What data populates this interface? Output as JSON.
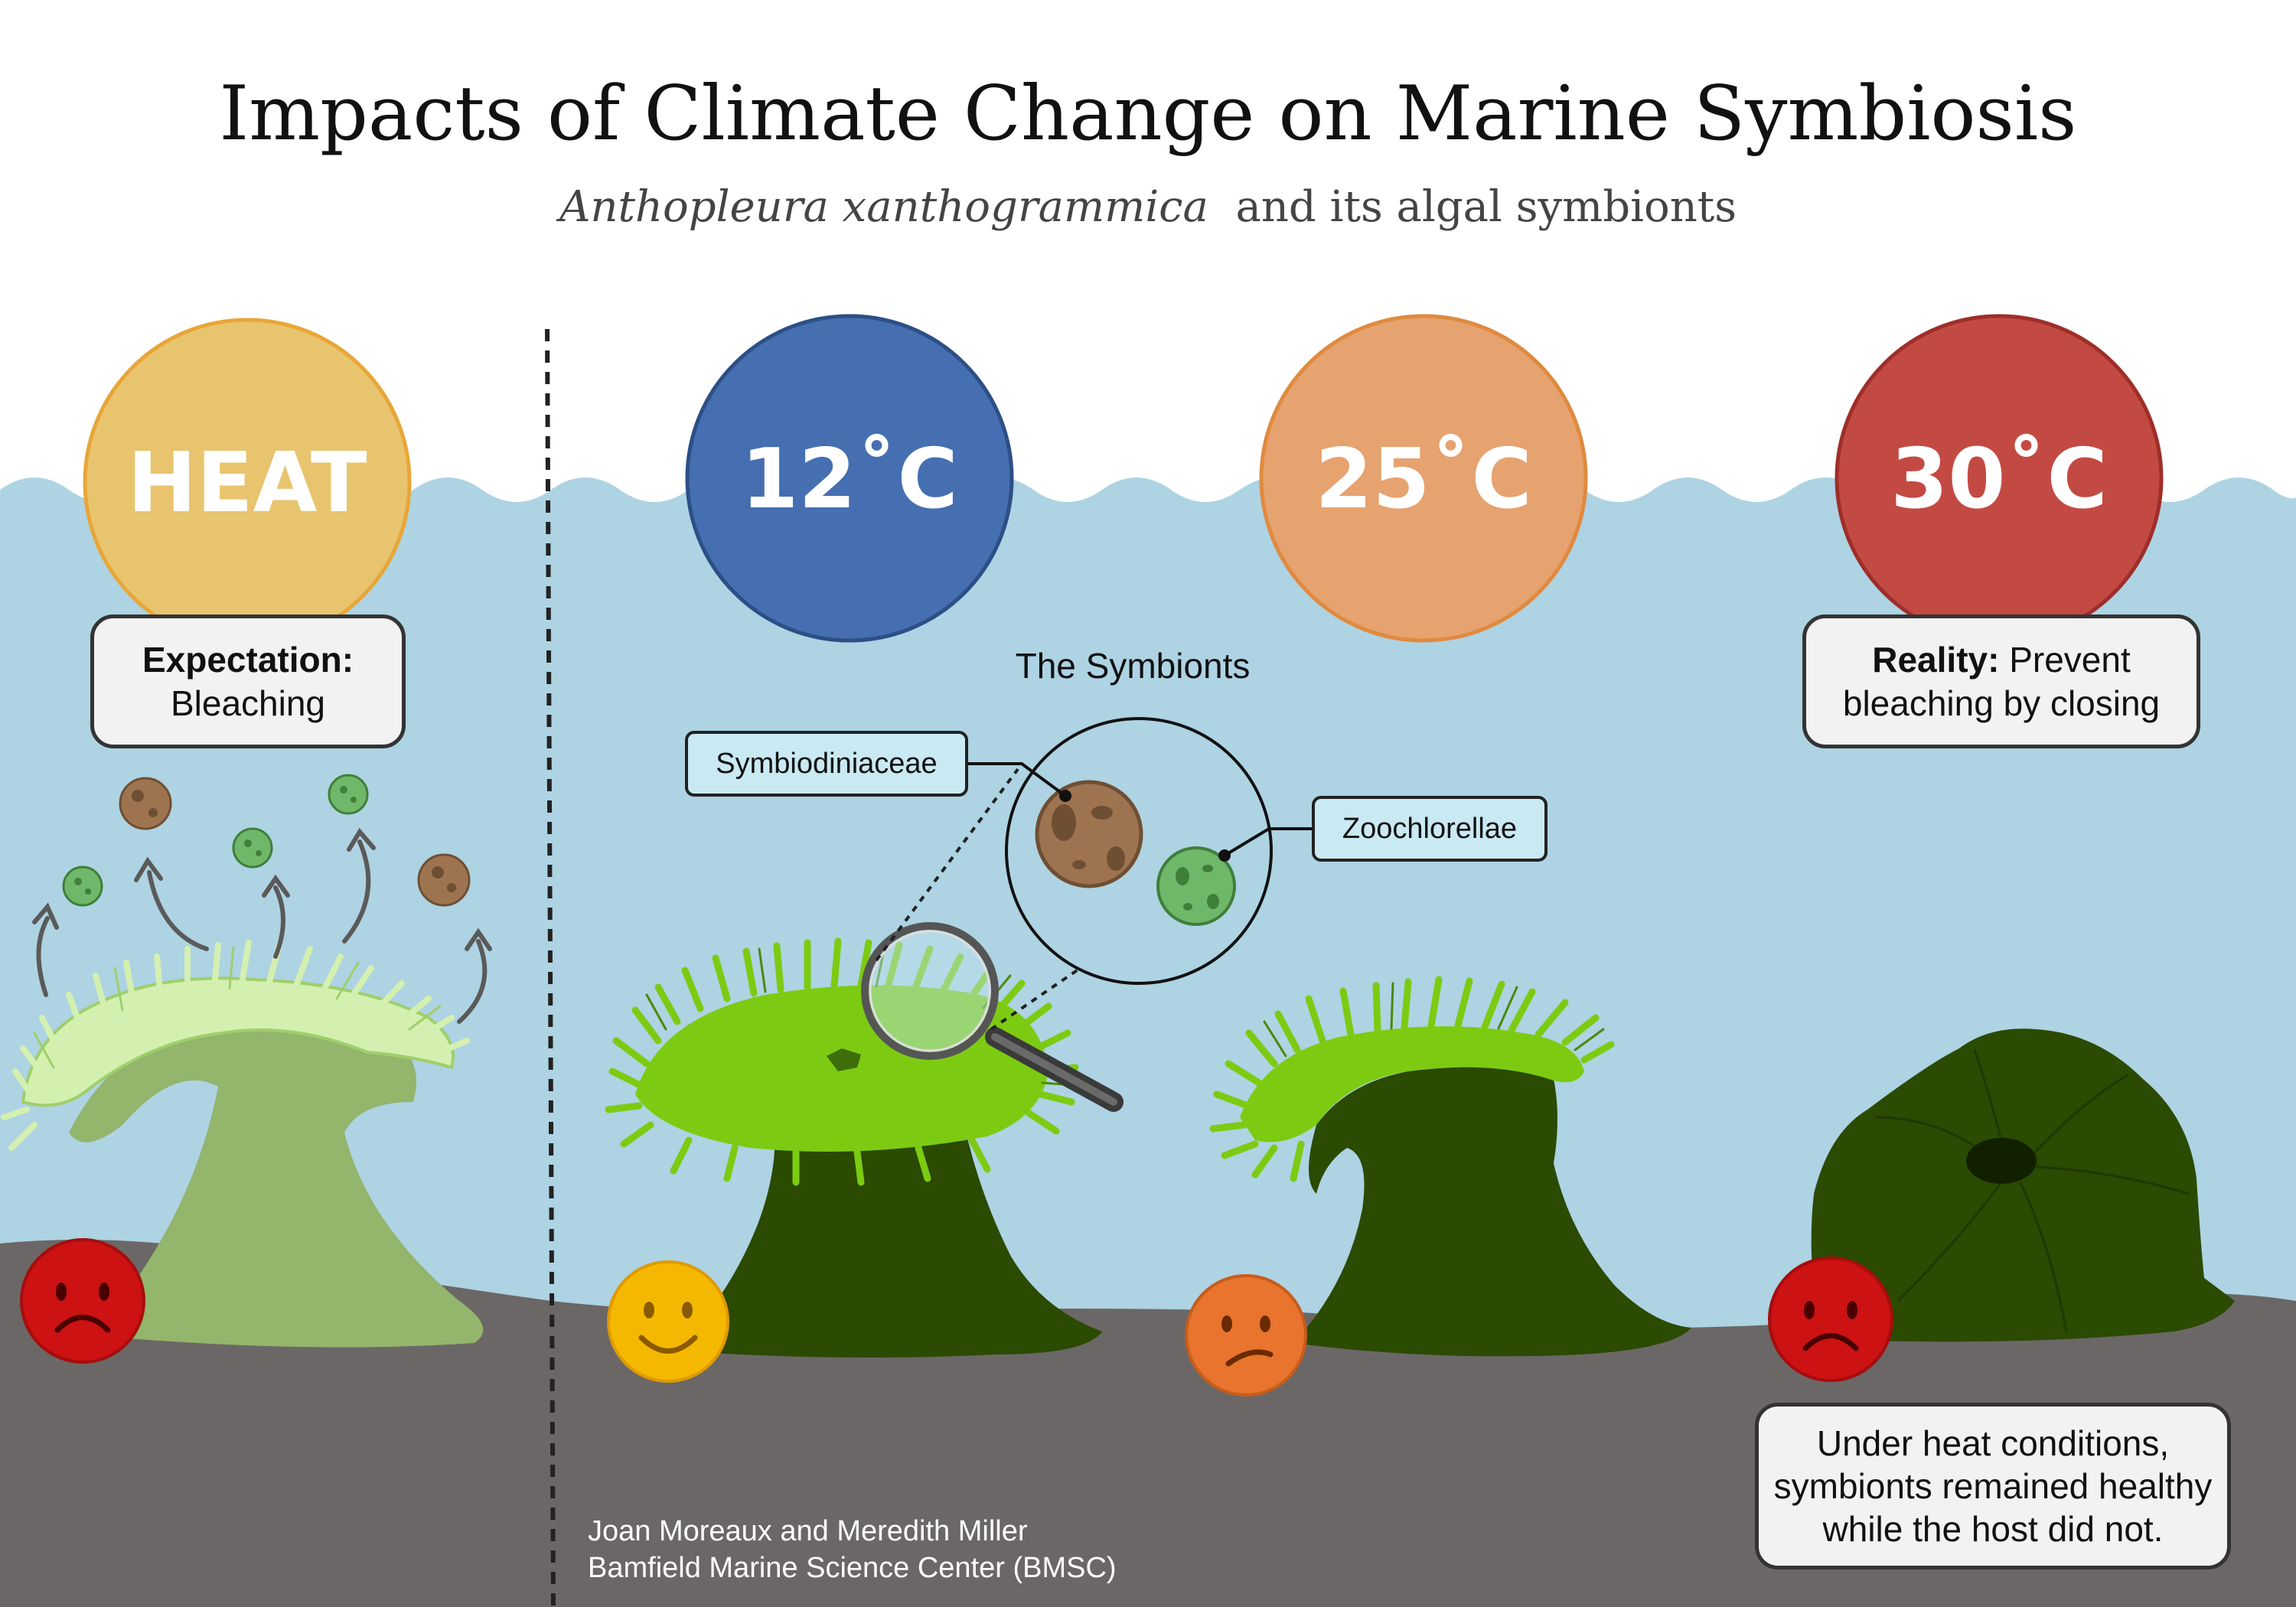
{
  "title": "Impacts of Climate Change on Marine Symbiosis",
  "subtitle": {
    "species": "Anthopleura xanthogrammica",
    "rest": "and its algal symbionts"
  },
  "conditions": [
    {
      "label": "HEAT",
      "color": "#e8c46e",
      "stroke": "#e8a637"
    },
    {
      "label": "12˚C",
      "color": "#456fb1",
      "stroke": "#2c4f86"
    },
    {
      "label": "25˚C",
      "color": "#e6a26f",
      "stroke": "#e08a3f"
    },
    {
      "label": "30˚C",
      "color": "#c34a43",
      "stroke": "#9e2e2a"
    }
  ],
  "expectation": {
    "bold": "Expectation:",
    "text": "Bleaching"
  },
  "reality": {
    "bold": "Reality:",
    "text_line1": "Prevent",
    "text_line2": "bleaching by closing"
  },
  "symbionts": {
    "title": "The Symbionts",
    "label_1": "Symbiodiniaceae",
    "label_2": "Zoochlorellae"
  },
  "conclusion": {
    "line1": "Under heat conditions,",
    "line2": "symbionts remained healthy",
    "line3": "while the host did not."
  },
  "credit": {
    "line1": "Joan Moreaux and Meredith Miller",
    "line2": "Bamfield Marine Science Center (BMSC)"
  },
  "moods": [
    "sad",
    "happy",
    "confused",
    "sad"
  ],
  "colors": {
    "water": "#aed3e3",
    "rock": "#6b6766",
    "anemone_dark": "#2b4a02",
    "tentacle_green": "#7ccb12",
    "bleached_body": "#93b56c",
    "bleached_tentacle": "#d4f0b0",
    "symbiodiniaceae": "#9e7450",
    "zoochlorellae": "#6fb86a"
  }
}
